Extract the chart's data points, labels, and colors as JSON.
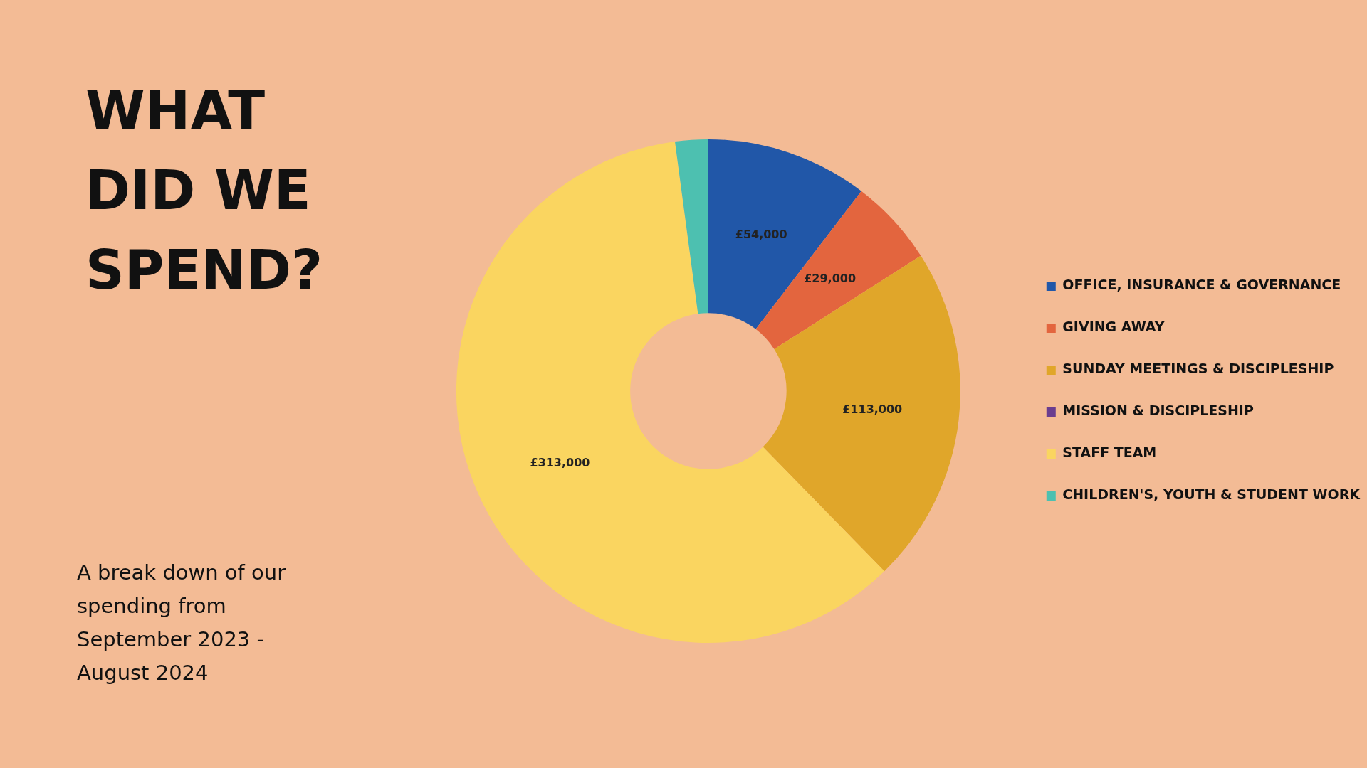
{
  "chart_data": {
    "type": "donut",
    "title": "WHAT DID WE SPEND?",
    "subtitle": "A break down of our spending from September 2023 - August 2024",
    "categories": [
      "OFFICE, INSURANCE & GOVERNANCE",
      "GIVING AWAY",
      "SUNDAY MEETINGS & DISCIPLESHIP",
      "MISSION & DISCIPLESHIP",
      "STAFF TEAM",
      "CHILDREN'S, YOUTH & STUDENT WORK"
    ],
    "values": [
      54000,
      29000,
      113000,
      0,
      313000,
      11000
    ],
    "value_labels": [
      "£54,000",
      "£29,000",
      "£113,000",
      null,
      "£313,000",
      null
    ],
    "colors": [
      "#2157a8",
      "#e3653e",
      "#e0a62a",
      "#6a3d8f",
      "#fad560",
      "#4dc0b0"
    ],
    "legend": "right"
  }
}
